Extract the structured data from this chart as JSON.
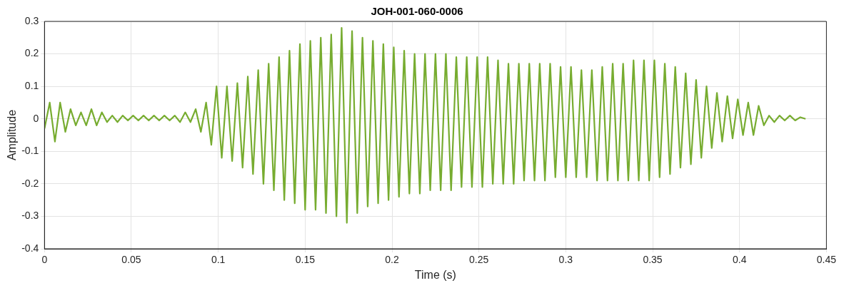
{
  "chart_data": {
    "type": "line",
    "title": "JOH-001-060-0006",
    "xlabel": "Time (s)",
    "ylabel": "Amplitude",
    "xlim": [
      0,
      0.45
    ],
    "xticks": [
      0,
      0.05,
      0.1,
      0.15,
      0.2,
      0.25,
      0.3,
      0.35,
      0.4,
      0.45
    ],
    "ylim": [
      -0.4,
      0.3
    ],
    "yticks": [
      -0.4,
      -0.3,
      -0.2,
      -0.1,
      0,
      0.1,
      0.2,
      0.3
    ],
    "grid": true,
    "legend": false,
    "marker": "none",
    "line_style": "solid",
    "series": [
      {
        "color": "#77ac30",
        "x": [
          0,
          0.003,
          0.006,
          0.009,
          0.012,
          0.015,
          0.018,
          0.021,
          0.024,
          0.027,
          0.03,
          0.033,
          0.036,
          0.039,
          0.042,
          0.045,
          0.048,
          0.051,
          0.054,
          0.057,
          0.06,
          0.063,
          0.066,
          0.069,
          0.072,
          0.075,
          0.078,
          0.081,
          0.084,
          0.087,
          0.09,
          0.093,
          0.096,
          0.099,
          0.102,
          0.105,
          0.108,
          0.111,
          0.114,
          0.117,
          0.12,
          0.123,
          0.126,
          0.129,
          0.132,
          0.135,
          0.138,
          0.141,
          0.144,
          0.147,
          0.15,
          0.153,
          0.156,
          0.159,
          0.162,
          0.165,
          0.168,
          0.171,
          0.174,
          0.177,
          0.18,
          0.183,
          0.186,
          0.189,
          0.192,
          0.195,
          0.198,
          0.201,
          0.204,
          0.207,
          0.21,
          0.213,
          0.216,
          0.219,
          0.222,
          0.225,
          0.228,
          0.231,
          0.234,
          0.237,
          0.24,
          0.243,
          0.246,
          0.249,
          0.252,
          0.255,
          0.258,
          0.261,
          0.264,
          0.267,
          0.27,
          0.273,
          0.276,
          0.279,
          0.282,
          0.285,
          0.288,
          0.291,
          0.294,
          0.297,
          0.3,
          0.303,
          0.306,
          0.309,
          0.312,
          0.315,
          0.318,
          0.321,
          0.324,
          0.327,
          0.33,
          0.333,
          0.336,
          0.339,
          0.342,
          0.345,
          0.348,
          0.351,
          0.354,
          0.357,
          0.36,
          0.363,
          0.366,
          0.369,
          0.372,
          0.375,
          0.378,
          0.381,
          0.384,
          0.387,
          0.39,
          0.393,
          0.396,
          0.399,
          0.402,
          0.405,
          0.408,
          0.411,
          0.414,
          0.417,
          0.42,
          0.423,
          0.426,
          0.429,
          0.432,
          0.435,
          0.438
        ],
        "values": [
          -0.03,
          0.05,
          -0.07,
          0.05,
          -0.04,
          0.03,
          -0.02,
          0.02,
          -0.02,
          0.03,
          -0.02,
          0.02,
          -0.01,
          0.01,
          -0.01,
          0.01,
          -0.005,
          0.01,
          -0.005,
          0.01,
          -0.005,
          0.01,
          -0.005,
          0.01,
          -0.005,
          0.01,
          -0.01,
          0.02,
          -0.01,
          0.03,
          -0.04,
          0.05,
          -0.08,
          0.1,
          -0.12,
          0.1,
          -0.13,
          0.11,
          -0.15,
          0.13,
          -0.17,
          0.15,
          -0.2,
          0.17,
          -0.22,
          0.19,
          -0.25,
          0.21,
          -0.26,
          0.23,
          -0.28,
          0.24,
          -0.28,
          0.25,
          -0.29,
          0.26,
          -0.3,
          0.28,
          -0.32,
          0.27,
          -0.29,
          0.25,
          -0.27,
          0.24,
          -0.26,
          0.23,
          -0.25,
          0.22,
          -0.24,
          0.21,
          -0.23,
          0.2,
          -0.23,
          0.2,
          -0.22,
          0.2,
          -0.22,
          0.2,
          -0.22,
          0.19,
          -0.21,
          0.19,
          -0.21,
          0.19,
          -0.21,
          0.19,
          -0.2,
          0.18,
          -0.2,
          0.17,
          -0.2,
          0.17,
          -0.19,
          0.17,
          -0.19,
          0.17,
          -0.19,
          0.17,
          -0.18,
          0.16,
          -0.18,
          0.16,
          -0.18,
          0.15,
          -0.18,
          0.15,
          -0.19,
          0.16,
          -0.19,
          0.17,
          -0.19,
          0.17,
          -0.19,
          0.18,
          -0.19,
          0.18,
          -0.19,
          0.18,
          -0.18,
          0.17,
          -0.17,
          0.16,
          -0.15,
          0.14,
          -0.14,
          0.12,
          -0.12,
          0.1,
          -0.09,
          0.08,
          -0.07,
          0.07,
          -0.06,
          0.06,
          -0.05,
          0.05,
          -0.05,
          0.04,
          -0.02,
          0.01,
          -0.01,
          0.01,
          -0.005,
          0.01,
          -0.005,
          0.005,
          0
        ]
      }
    ]
  }
}
